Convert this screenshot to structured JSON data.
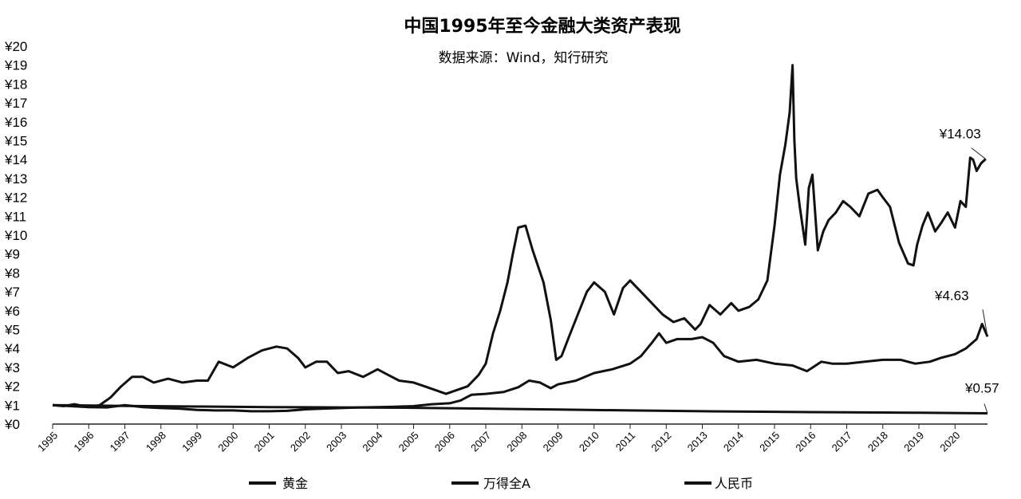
{
  "chart_data": {
    "type": "line",
    "title": "中国1995年至今金融大类资产表现",
    "subtitle": "数据来源：Wind，知行研究",
    "xlabel": "",
    "ylabel": "",
    "xlim": [
      1995,
      2020.9
    ],
    "ylim": [
      0,
      20
    ],
    "yticks": [
      "¥0",
      "¥1",
      "¥2",
      "¥3",
      "¥4",
      "¥5",
      "¥6",
      "¥7",
      "¥8",
      "¥9",
      "¥10",
      "¥11",
      "¥12",
      "¥13",
      "¥14",
      "¥15",
      "¥16",
      "¥17",
      "¥18",
      "¥19",
      "¥20"
    ],
    "xticks": [
      "1995",
      "1996",
      "1997",
      "1998",
      "1999",
      "2000",
      "2001",
      "2002",
      "2003",
      "2004",
      "2005",
      "2006",
      "2007",
      "2008",
      "2009",
      "2010",
      "2011",
      "2012",
      "2013",
      "2014",
      "2015",
      "2016",
      "2017",
      "2018",
      "2019",
      "2020"
    ],
    "grid": false,
    "legend_position": "bottom",
    "series": [
      {
        "name": "黄金",
        "color": "#111111",
        "x": [
          1995.0,
          1995.5,
          1996.0,
          1996.5,
          1997.0,
          1997.5,
          1998.0,
          1998.5,
          1999.0,
          1999.5,
          2000.0,
          2000.5,
          2001.0,
          2001.5,
          2002.0,
          2002.5,
          2003.0,
          2003.5,
          2004.0,
          2004.5,
          2005.0,
          2005.5,
          2006.0,
          2006.3,
          2006.6,
          2007.0,
          2007.5,
          2007.9,
          2008.2,
          2008.5,
          2008.8,
          2009.0,
          2009.5,
          2010.0,
          2010.5,
          2011.0,
          2011.3,
          2011.6,
          2011.8,
          2012.0,
          2012.3,
          2012.7,
          2013.0,
          2013.3,
          2013.6,
          2014.0,
          2014.5,
          2015.0,
          2015.5,
          2015.9,
          2016.3,
          2016.6,
          2017.0,
          2017.5,
          2018.0,
          2018.5,
          2018.9,
          2019.3,
          2019.6,
          2020.0,
          2020.3,
          2020.6,
          2020.75,
          2020.9
        ],
        "values": [
          1.0,
          0.95,
          0.9,
          0.88,
          1.0,
          0.9,
          0.85,
          0.82,
          0.75,
          0.72,
          0.72,
          0.68,
          0.68,
          0.7,
          0.78,
          0.82,
          0.85,
          0.88,
          0.9,
          0.92,
          0.95,
          1.05,
          1.1,
          1.25,
          1.55,
          1.6,
          1.7,
          1.95,
          2.3,
          2.2,
          1.9,
          2.1,
          2.3,
          2.7,
          2.9,
          3.2,
          3.6,
          4.3,
          4.8,
          4.3,
          4.5,
          4.5,
          4.6,
          4.3,
          3.6,
          3.3,
          3.4,
          3.2,
          3.1,
          2.8,
          3.3,
          3.2,
          3.2,
          3.3,
          3.4,
          3.4,
          3.2,
          3.3,
          3.5,
          3.7,
          4.0,
          4.5,
          5.3,
          4.63
        ]
      },
      {
        "name": "万得全A",
        "color": "#111111",
        "x": [
          1995.0,
          1995.3,
          1995.6,
          1996.0,
          1996.3,
          1996.6,
          1996.9,
          1997.2,
          1997.5,
          1997.8,
          1998.2,
          1998.6,
          1999.0,
          1999.3,
          1999.6,
          2000.0,
          2000.4,
          2000.8,
          2001.2,
          2001.5,
          2001.8,
          2002.0,
          2002.3,
          2002.6,
          2002.9,
          2003.2,
          2003.6,
          2004.0,
          2004.3,
          2004.6,
          2005.0,
          2005.3,
          2005.6,
          2005.9,
          2006.2,
          2006.5,
          2006.8,
          2007.0,
          2007.2,
          2007.4,
          2007.6,
          2007.75,
          2007.9,
          2008.1,
          2008.3,
          2008.6,
          2008.8,
          2008.95,
          2009.1,
          2009.3,
          2009.55,
          2009.8,
          2010.0,
          2010.3,
          2010.55,
          2010.8,
          2011.0,
          2011.3,
          2011.6,
          2011.9,
          2012.2,
          2012.5,
          2012.8,
          2012.95,
          2013.2,
          2013.5,
          2013.8,
          2014.0,
          2014.3,
          2014.55,
          2014.8,
          2015.0,
          2015.15,
          2015.3,
          2015.42,
          2015.5,
          2015.55,
          2015.6,
          2015.7,
          2015.85,
          2015.95,
          2016.05,
          2016.2,
          2016.35,
          2016.5,
          2016.7,
          2016.9,
          2017.1,
          2017.35,
          2017.6,
          2017.85,
          2018.0,
          2018.2,
          2018.45,
          2018.7,
          2018.85,
          2018.95,
          2019.1,
          2019.25,
          2019.45,
          2019.6,
          2019.8,
          2020.0,
          2020.15,
          2020.3,
          2020.42,
          2020.5,
          2020.6,
          2020.72,
          2020.85
        ],
        "values": [
          1.0,
          0.95,
          1.05,
          0.9,
          1.0,
          1.4,
          2.0,
          2.5,
          2.5,
          2.2,
          2.4,
          2.2,
          2.3,
          2.3,
          3.3,
          3.0,
          3.5,
          3.9,
          4.1,
          4.0,
          3.5,
          3.0,
          3.3,
          3.3,
          2.7,
          2.8,
          2.5,
          2.9,
          2.6,
          2.3,
          2.2,
          2.0,
          1.8,
          1.6,
          1.8,
          2.0,
          2.6,
          3.2,
          4.8,
          6.0,
          7.5,
          9.0,
          10.4,
          10.5,
          9.2,
          7.5,
          5.5,
          3.4,
          3.6,
          4.6,
          5.8,
          7.0,
          7.5,
          7.0,
          5.8,
          7.2,
          7.6,
          7.0,
          6.4,
          5.8,
          5.4,
          5.6,
          5.0,
          5.3,
          6.3,
          5.8,
          6.4,
          6.0,
          6.2,
          6.6,
          7.6,
          10.5,
          13.2,
          14.8,
          16.5,
          19.0,
          15.0,
          13.0,
          11.5,
          9.5,
          12.5,
          13.2,
          9.2,
          10.2,
          10.8,
          11.2,
          11.8,
          11.5,
          11.0,
          12.2,
          12.4,
          12.0,
          11.5,
          9.6,
          8.5,
          8.4,
          9.5,
          10.5,
          11.2,
          10.2,
          10.6,
          11.2,
          10.4,
          11.8,
          11.5,
          14.1,
          14.0,
          13.4,
          13.8,
          14.03
        ]
      },
      {
        "name": "人民币",
        "color": "#111111",
        "x": [
          1995.0,
          1997.0,
          1999.0,
          2001.0,
          2003.0,
          2005.0,
          2007.0,
          2009.0,
          2011.0,
          2013.0,
          2015.0,
          2017.0,
          2019.0,
          2020.9
        ],
        "values": [
          1.0,
          0.96,
          0.93,
          0.9,
          0.88,
          0.86,
          0.82,
          0.77,
          0.72,
          0.68,
          0.65,
          0.62,
          0.6,
          0.57
        ]
      }
    ],
    "annotations": [
      {
        "label": "¥14.03",
        "series": "万得全A",
        "x": 2020.85,
        "y": 14.03
      },
      {
        "label": "¥4.63",
        "series": "黄金",
        "x": 2020.9,
        "y": 4.63
      },
      {
        "label": "¥0.57",
        "series": "人民币",
        "x": 2020.9,
        "y": 0.57
      }
    ]
  }
}
